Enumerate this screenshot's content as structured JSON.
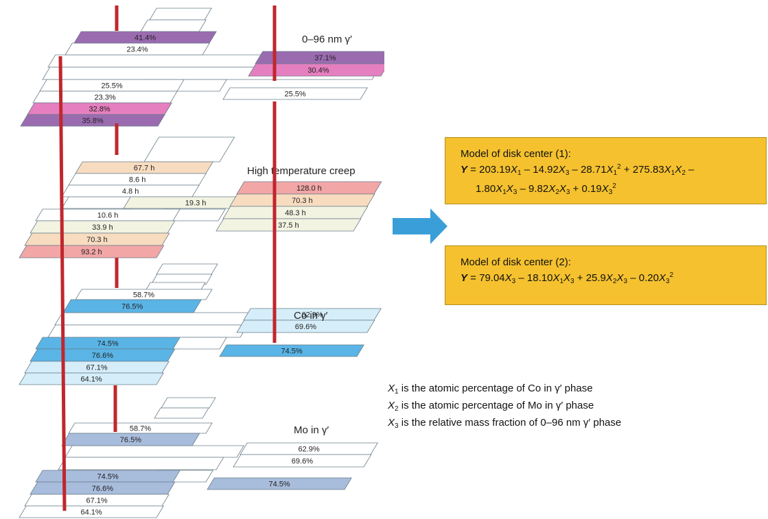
{
  "layers": [
    {
      "label": "0–96 nm γ′",
      "cells": [
        "41.4%",
        "23.4%",
        "37.1%",
        "30.4%",
        "25.5%",
        "25.5%",
        "23.3%",
        "32.8%",
        "35.8%"
      ]
    },
    {
      "label": "High temperature creep",
      "cells": [
        "67.7 h",
        "8.6 h",
        "4.8 h",
        "19.3 h",
        "128.0 h",
        "70.3 h",
        "48.3 h",
        "37.5 h",
        "10.6 h",
        "33.9 h",
        "70.3 h",
        "93.2 h"
      ]
    },
    {
      "label": "Co in γ′",
      "cells": [
        "58.7%",
        "76.5%",
        "62.9%",
        "69.6%",
        "74.5%",
        "74.5%",
        "76.6%",
        "67.1%",
        "64.1%"
      ]
    },
    {
      "label": "Mo in γ′",
      "cells": [
        "58.7%",
        "76.5%",
        "62.9%",
        "69.6%",
        "74.5%",
        "74.5%",
        "76.6%",
        "67.1%",
        "64.1%"
      ]
    }
  ],
  "model1": {
    "title": "Model of disk center (1):",
    "line1": [
      "Y",
      " = 203.19",
      "X",
      "1",
      " – 14.92",
      "X",
      "3",
      " – 28.71",
      "X",
      "1",
      "2",
      " + 275.83",
      "X",
      "1",
      "X",
      "2",
      " –"
    ],
    "line2": [
      "1.80",
      "X",
      "1",
      "X",
      "3",
      " – 9.82",
      "X",
      "2",
      "X",
      "3",
      " + 0.19",
      "X",
      "3",
      "2"
    ]
  },
  "model2": {
    "title": "Model of disk center (2):",
    "line1": [
      "Y",
      " = 79.04",
      "X",
      "3",
      " – 18.10",
      "X",
      "1",
      "X",
      "3",
      " + 25.9",
      "X",
      "2",
      "X",
      "3",
      " – 0.20",
      "X",
      "3",
      "2"
    ]
  },
  "notes": [
    [
      "X",
      "1",
      " is the atomic percentage of Co in γ′ phase"
    ],
    [
      "X",
      "2",
      " is the atomic percentage of Mo in γ′ phase"
    ],
    [
      "X",
      "3",
      " is the relative mass fraction of 0–96 nm γ′ phase"
    ]
  ]
}
